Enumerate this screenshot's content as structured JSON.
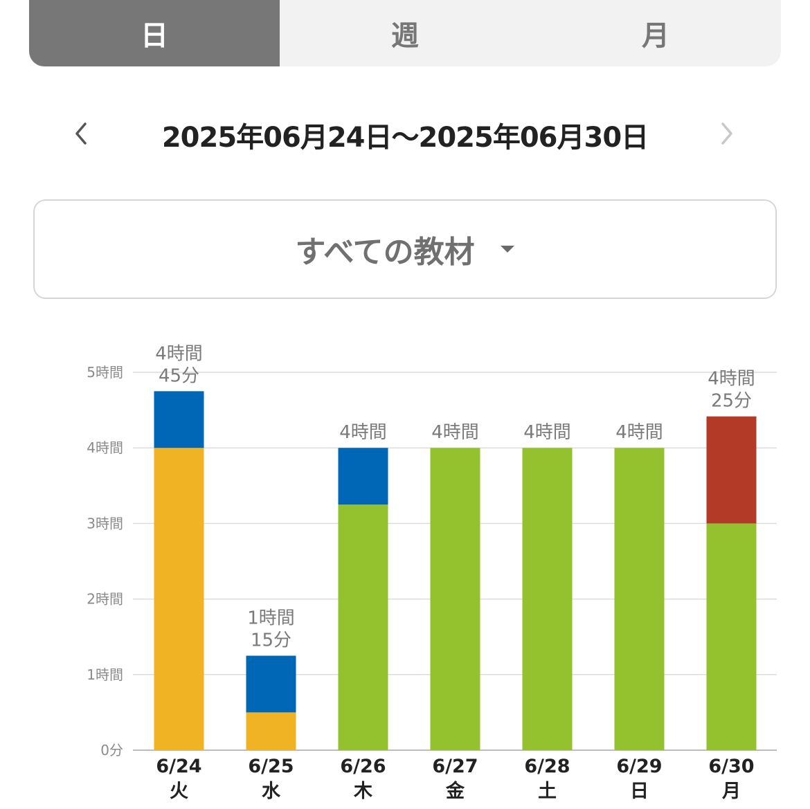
{
  "tabs": [
    {
      "label": "日",
      "active": true
    },
    {
      "label": "週",
      "active": false
    },
    {
      "label": "月",
      "active": false
    }
  ],
  "date_range": {
    "label": "2025年06月24日〜2025年06月30日",
    "prev_icon": "chevron-left-icon",
    "next_icon": "chevron-right-icon"
  },
  "filter": {
    "label": "すべての教材",
    "icon": "caret-down-icon"
  },
  "colors": {
    "orange": "#f0b323",
    "blue": "#0067b6",
    "green": "#93c22e",
    "red": "#b33a26"
  },
  "chart_data": {
    "type": "bar",
    "stacked": true,
    "ylim": [
      0,
      5
    ],
    "yticks": [
      "0分",
      "1時間",
      "2時間",
      "3時間",
      "4時間",
      "5時間"
    ],
    "categories": [
      {
        "date": "6/24",
        "day": "火"
      },
      {
        "date": "6/25",
        "day": "水"
      },
      {
        "date": "6/26",
        "day": "木"
      },
      {
        "date": "6/27",
        "day": "金"
      },
      {
        "date": "6/28",
        "day": "土"
      },
      {
        "date": "6/29",
        "day": "日"
      },
      {
        "date": "6/30",
        "day": "月"
      }
    ],
    "series": [
      {
        "color": "#f0b323",
        "values": [
          4,
          0.5,
          0,
          0,
          0,
          0,
          0
        ]
      },
      {
        "color": "#93c22e",
        "values": [
          0,
          0,
          3.25,
          4,
          4,
          4,
          3
        ]
      },
      {
        "color": "#0067b6",
        "values": [
          0.75,
          0.75,
          0.75,
          0,
          0,
          0,
          0
        ]
      },
      {
        "color": "#b33a26",
        "values": [
          0,
          0,
          0,
          0,
          0,
          0,
          1.4167
        ]
      }
    ],
    "totals": [
      [
        "4時間",
        "45分"
      ],
      [
        "1時間",
        "15分"
      ],
      [
        "4時間"
      ],
      [
        "4時間"
      ],
      [
        "4時間"
      ],
      [
        "4時間"
      ],
      [
        "4時間",
        "25分"
      ]
    ],
    "grid": true
  }
}
